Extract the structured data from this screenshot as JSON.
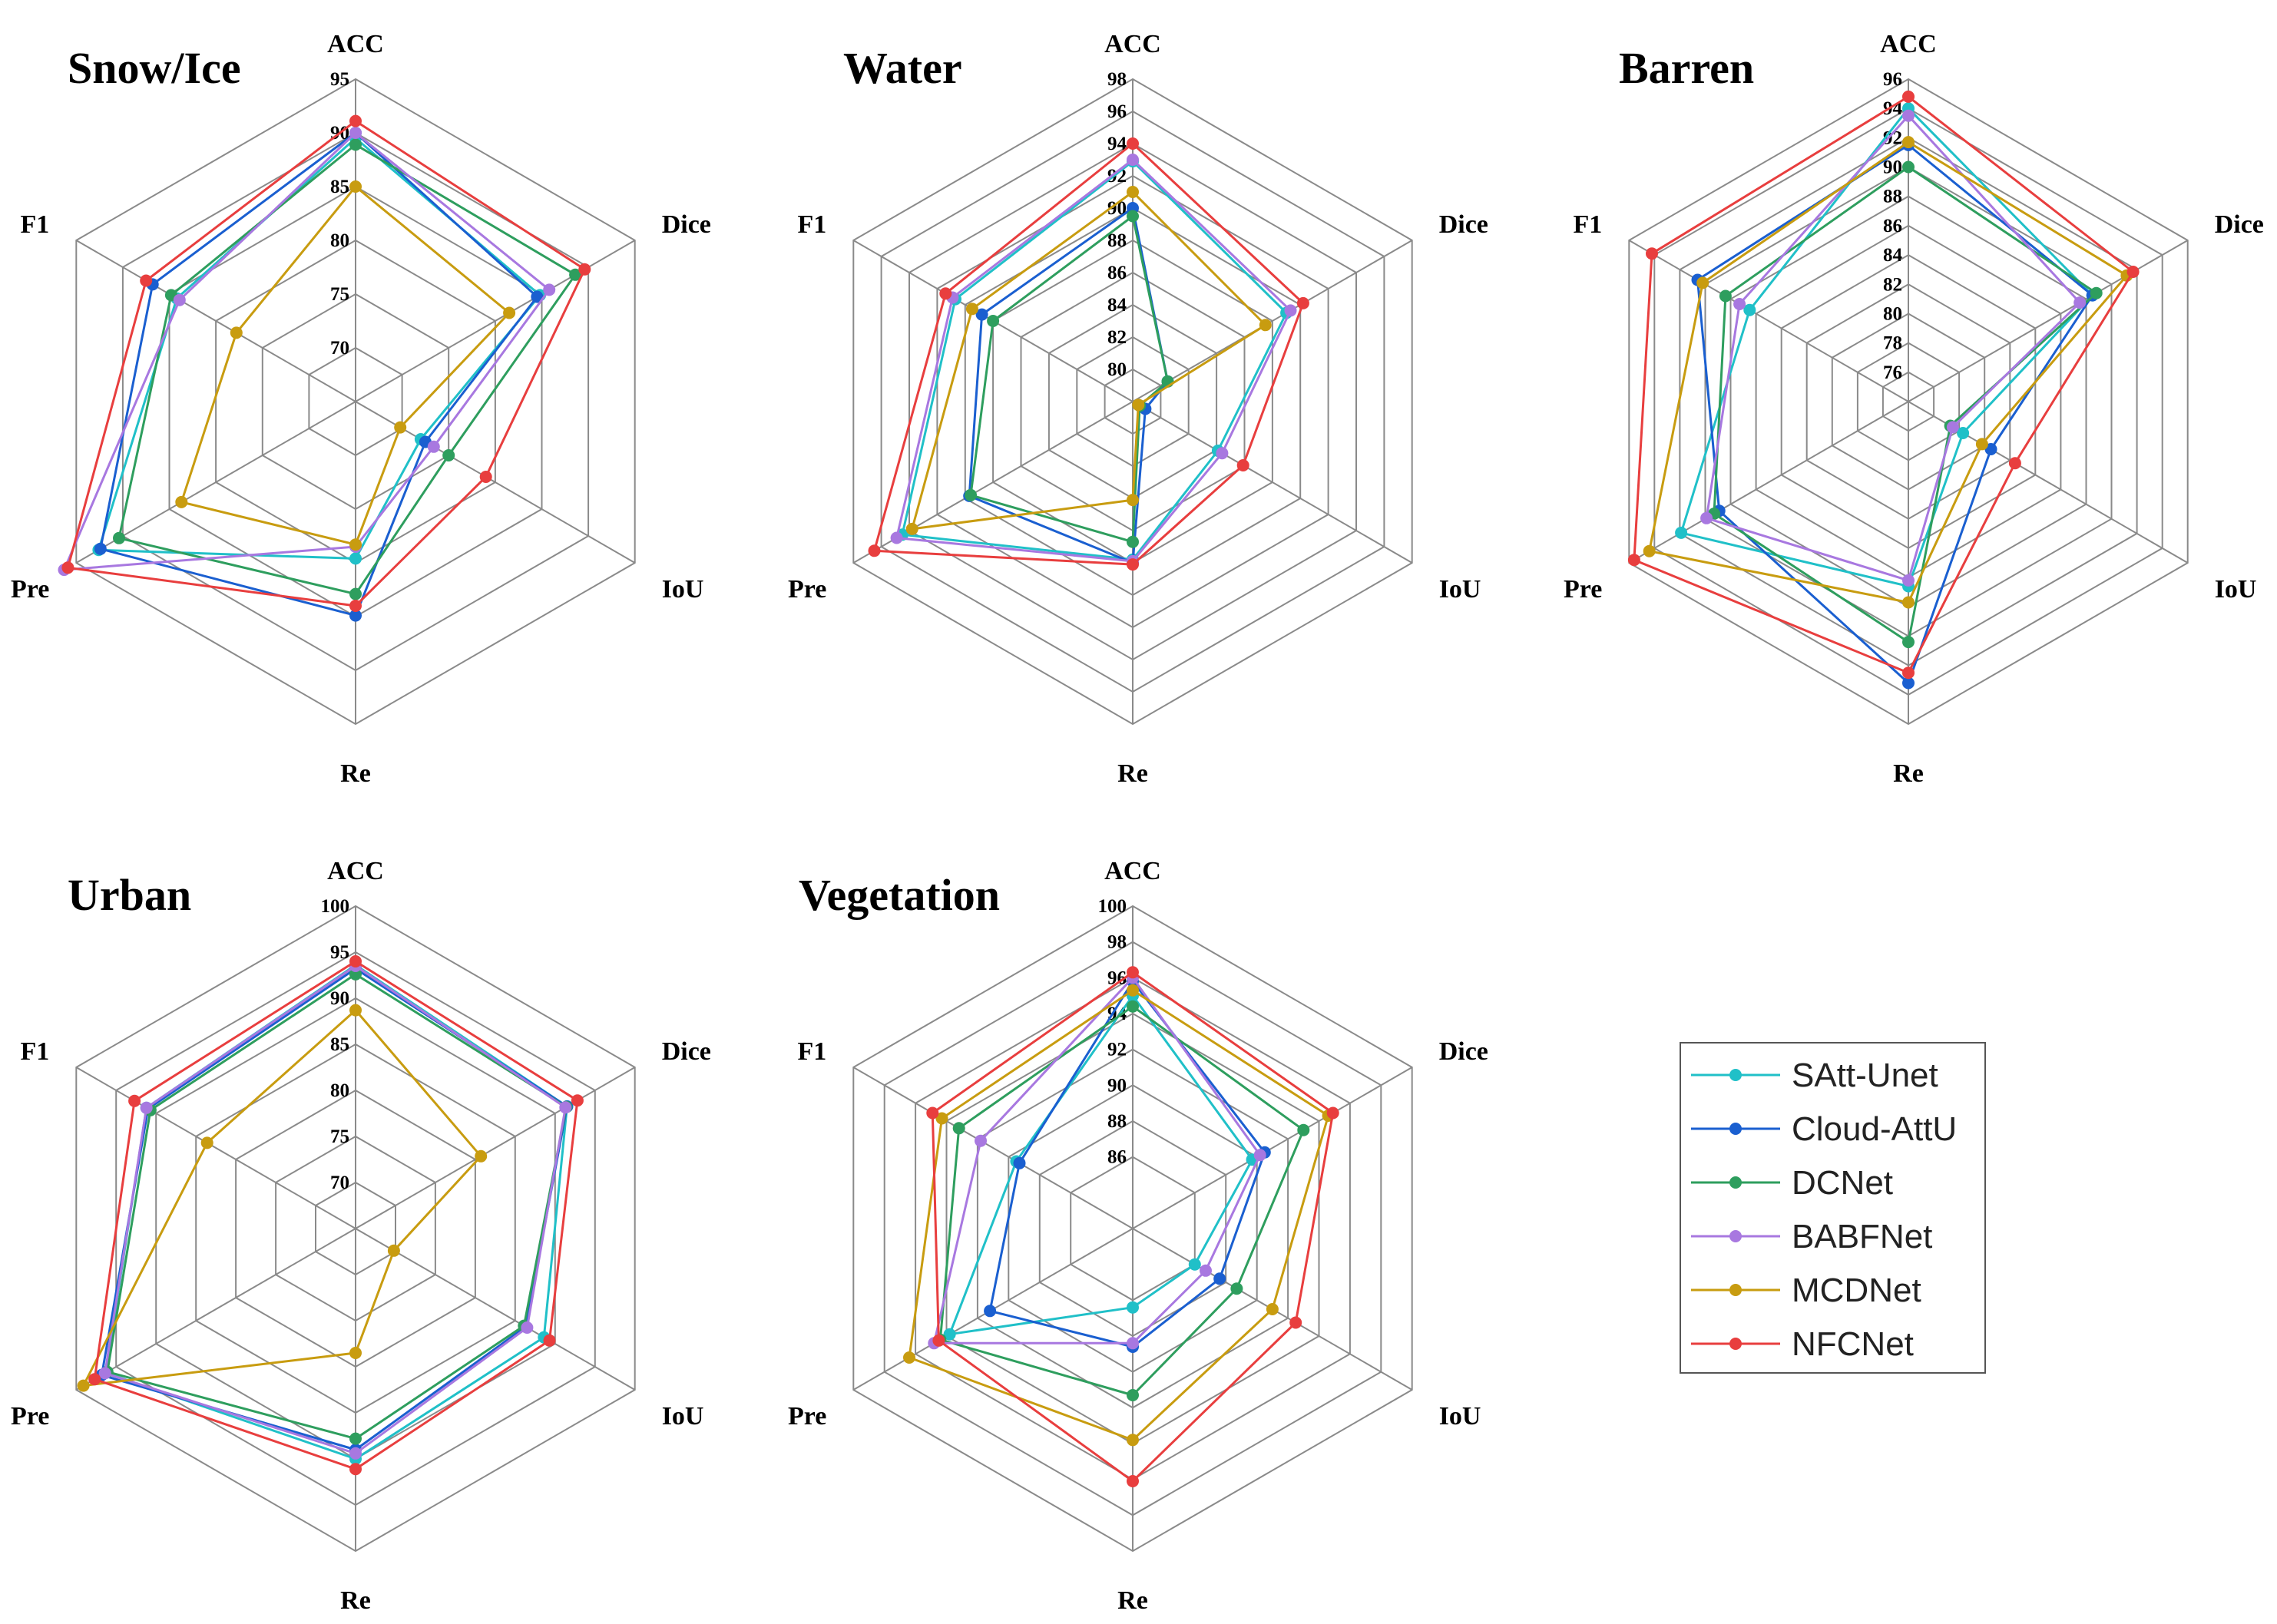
{
  "chart_data": [
    {
      "type": "radar",
      "title": "Snow/Ice",
      "axes": [
        "ACC",
        "Dice",
        "IoU",
        "Re",
        "Pre",
        "F1"
      ],
      "rlim": [
        65,
        95
      ],
      "ticks": [
        70,
        75,
        80,
        85,
        90,
        95
      ],
      "series": [
        {
          "name": "SAtt-Unet",
          "values": [
            89.5,
            84.8,
            72.0,
            79.6,
            92.6,
            84.2
          ]
        },
        {
          "name": "Cloud-AttU",
          "values": [
            90.0,
            84.5,
            72.5,
            84.9,
            92.4,
            86.8
          ]
        },
        {
          "name": "DCNet",
          "values": [
            88.9,
            88.6,
            75.0,
            82.9,
            90.4,
            84.8
          ]
        },
        {
          "name": "BABFNet",
          "values": [
            90.0,
            85.8,
            73.4,
            78.5,
            96.3,
            83.9
          ]
        },
        {
          "name": "MCDNet",
          "values": [
            85.0,
            81.5,
            69.8,
            78.3,
            83.7,
            77.8
          ]
        },
        {
          "name": "NFCNet",
          "values": [
            91.1,
            89.6,
            79.0,
            84.0,
            95.9,
            87.5
          ]
        }
      ]
    },
    {
      "type": "radar",
      "title": "Water",
      "axes": [
        "ACC",
        "Dice",
        "IoU",
        "Re",
        "Pre",
        "F1"
      ],
      "rlim": [
        78,
        98
      ],
      "ticks": [
        80,
        82,
        84,
        86,
        88,
        90,
        92,
        94,
        96,
        98
      ],
      "series": [
        {
          "name": "SAtt-Unet",
          "values": [
            92.9,
            89.0,
            84.1,
            87.8,
            94.5,
            90.7
          ]
        },
        {
          "name": "Cloud-AttU",
          "values": [
            90.0,
            80.5,
            78.9,
            88.0,
            89.7,
            88.8
          ]
        },
        {
          "name": "DCNet",
          "values": [
            89.5,
            80.5,
            78.5,
            86.7,
            89.6,
            88.0
          ]
        },
        {
          "name": "BABFNet",
          "values": [
            93.0,
            89.3,
            84.4,
            87.9,
            94.9,
            90.9
          ]
        },
        {
          "name": "MCDNet",
          "values": [
            91.0,
            87.5,
            78.4,
            84.1,
            93.8,
            89.5
          ]
        },
        {
          "name": "NFCNet",
          "values": [
            94.0,
            90.2,
            85.9,
            88.1,
            96.5,
            91.4
          ]
        }
      ]
    },
    {
      "type": "radar",
      "title": "Barren",
      "axes": [
        "ACC",
        "Dice",
        "IoU",
        "Re",
        "Pre",
        "F1"
      ],
      "rlim": [
        74,
        96
      ],
      "ticks": [
        76,
        78,
        80,
        82,
        84,
        86,
        88,
        90,
        92,
        94,
        96
      ],
      "series": [
        {
          "name": "SAtt-Unet",
          "values": [
            94.0,
            88.5,
            78.3,
            86.6,
            91.9,
            86.5
          ]
        },
        {
          "name": "Cloud-AttU",
          "values": [
            91.5,
            88.5,
            80.5,
            93.2,
            88.9,
            90.6
          ]
        },
        {
          "name": "DCNet",
          "values": [
            90.0,
            88.8,
            77.3,
            90.4,
            89.3,
            88.4
          ]
        },
        {
          "name": "BABFNet",
          "values": [
            93.5,
            87.5,
            77.5,
            86.2,
            89.9,
            87.3
          ]
        },
        {
          "name": "MCDNet",
          "values": [
            91.7,
            91.2,
            79.8,
            87.7,
            94.4,
            90.2
          ]
        },
        {
          "name": "NFCNet",
          "values": [
            94.8,
            91.7,
            82.4,
            92.5,
            95.6,
            94.2
          ]
        }
      ]
    },
    {
      "type": "radar",
      "title": "Urban",
      "axes": [
        "ACC",
        "Dice",
        "IoU",
        "Re",
        "Pre",
        "F1"
      ],
      "rlim": [
        65,
        100
      ],
      "ticks": [
        70,
        75,
        80,
        85,
        90,
        95,
        100
      ],
      "series": [
        {
          "name": "SAtt-Unet",
          "values": [
            93.6,
            91.5,
            88.6,
            90.0,
            96.3,
            91.2
          ]
        },
        {
          "name": "Cloud-AttU",
          "values": [
            93.2,
            91.5,
            86.3,
            89.0,
            96.8,
            91.0
          ]
        },
        {
          "name": "DCNet",
          "values": [
            92.6,
            91.4,
            86.1,
            87.8,
            96.1,
            90.7
          ]
        },
        {
          "name": "BABFNet",
          "values": [
            93.5,
            91.3,
            86.5,
            89.4,
            96.4,
            91.2
          ]
        },
        {
          "name": "MCDNet",
          "values": [
            88.7,
            80.7,
            69.8,
            78.5,
            99.1,
            83.6
          ]
        },
        {
          "name": "NFCNet",
          "values": [
            94.0,
            92.8,
            89.3,
            91.1,
            97.7,
            92.7
          ]
        }
      ]
    },
    {
      "type": "radar",
      "title": "Vegetation",
      "axes": [
        "ACC",
        "Dice",
        "IoU",
        "Re",
        "Pre",
        "F1"
      ],
      "rlim": [
        82,
        100
      ],
      "ticks": [
        86,
        88,
        90,
        92,
        94,
        96,
        98,
        100
      ],
      "series": [
        {
          "name": "SAtt-Unet",
          "values": [
            95.0,
            89.7,
            86.0,
            86.4,
            93.8,
            89.5
          ]
        },
        {
          "name": "Cloud-AttU",
          "values": [
            95.8,
            90.5,
            87.6,
            88.6,
            91.2,
            89.3
          ]
        },
        {
          "name": "DCNet",
          "values": [
            94.4,
            93.0,
            88.7,
            91.3,
            94.4,
            93.2
          ]
        },
        {
          "name": "BABFNet",
          "values": [
            96.0,
            90.2,
            86.7,
            88.4,
            94.8,
            91.8
          ]
        },
        {
          "name": "MCDNet",
          "values": [
            95.3,
            94.6,
            91.0,
            93.8,
            96.4,
            94.3
          ]
        },
        {
          "name": "NFCNet",
          "values": [
            96.3,
            94.9,
            92.5,
            96.1,
            94.5,
            94.9
          ]
        }
      ]
    }
  ],
  "legend": {
    "entries": [
      {
        "name": "SAtt-Unet",
        "color": "#20C0C8"
      },
      {
        "name": "Cloud-AttU",
        "color": "#1A5FD0"
      },
      {
        "name": "DCNet",
        "color": "#2E9E5E"
      },
      {
        "name": "BABFNet",
        "color": "#A878E0"
      },
      {
        "name": "MCDNet",
        "color": "#C89C10"
      },
      {
        "name": "NFCNet",
        "color": "#E83E3E"
      }
    ]
  }
}
